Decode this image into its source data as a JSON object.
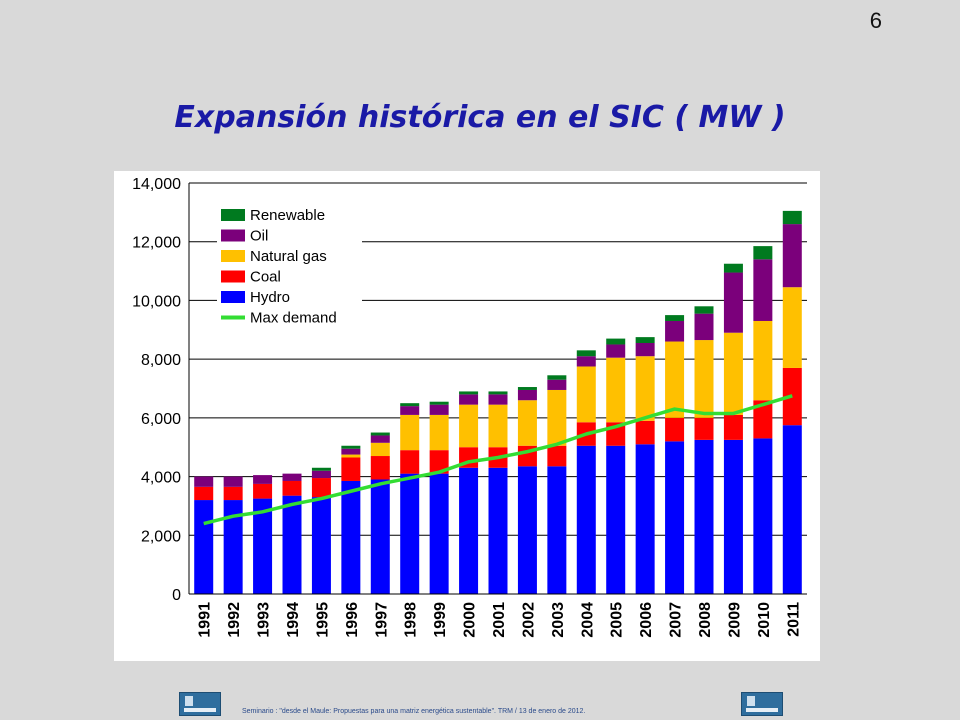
{
  "slide": {
    "number": "6",
    "title": "Expansión histórica en el SIC ( MW )",
    "footer": "Seminario : \"desde el Maule: Propuestas para una matriz energética sustentable\".  TRM  /  13 de enero de 2012."
  },
  "chart_data": {
    "type": "bar",
    "stacked": true,
    "title": "",
    "xlabel": "",
    "ylabel": "",
    "ylim": [
      0,
      14000
    ],
    "yticks": [
      0,
      2000,
      4000,
      6000,
      8000,
      10000,
      12000,
      14000
    ],
    "ytick_labels": [
      "0",
      "2,000",
      "4,000",
      "6,000",
      "8,000",
      "10,000",
      "12,000",
      "14,000"
    ],
    "grid": true,
    "legend_position": "top-left",
    "categories": [
      "1991",
      "1992",
      "1993",
      "1994",
      "1995",
      "1996",
      "1997",
      "1998",
      "1999",
      "2000",
      "2001",
      "2002",
      "2003",
      "2004",
      "2005",
      "2006",
      "2007",
      "2008",
      "2009",
      "2010",
      "2011"
    ],
    "series": [
      {
        "name": "Hydro",
        "color": "#0000ff",
        "values": [
          3200,
          3200,
          3250,
          3350,
          3300,
          3850,
          3900,
          4100,
          4100,
          4300,
          4300,
          4350,
          4350,
          5050,
          5050,
          5100,
          5200,
          5250,
          5250,
          5300,
          5750
        ]
      },
      {
        "name": "Coal",
        "color": "#ff0000",
        "values": [
          450,
          450,
          500,
          500,
          650,
          800,
          800,
          800,
          800,
          700,
          700,
          700,
          700,
          800,
          800,
          800,
          800,
          750,
          850,
          1300,
          1950
        ]
      },
      {
        "name": "Natural gas",
        "color": "#ffc000",
        "values": [
          0,
          0,
          0,
          0,
          0,
          100,
          450,
          1200,
          1200,
          1450,
          1450,
          1550,
          1900,
          1900,
          2200,
          2200,
          2600,
          2650,
          2800,
          2700,
          2750
        ]
      },
      {
        "name": "Oil",
        "color": "#7b007b",
        "values": [
          350,
          350,
          300,
          250,
          250,
          200,
          250,
          300,
          350,
          350,
          350,
          350,
          350,
          350,
          450,
          450,
          700,
          900,
          2050,
          2100,
          2150
        ]
      },
      {
        "name": "Renewable",
        "color": "#007a1f",
        "values": [
          0,
          0,
          0,
          0,
          100,
          100,
          100,
          100,
          100,
          100,
          100,
          100,
          150,
          200,
          200,
          200,
          200,
          250,
          300,
          450,
          450
        ]
      }
    ],
    "lines": [
      {
        "name": "Max demand",
        "color": "#33dd33",
        "values": [
          2400,
          2650,
          2800,
          3050,
          3250,
          3500,
          3750,
          3950,
          4150,
          4500,
          4650,
          4850,
          5100,
          5450,
          5700,
          6000,
          6300,
          6150,
          6150,
          6450,
          6750
        ]
      }
    ],
    "legend_order": [
      "Renewable",
      "Oil",
      "Natural gas",
      "Coal",
      "Hydro",
      "Max demand"
    ]
  }
}
